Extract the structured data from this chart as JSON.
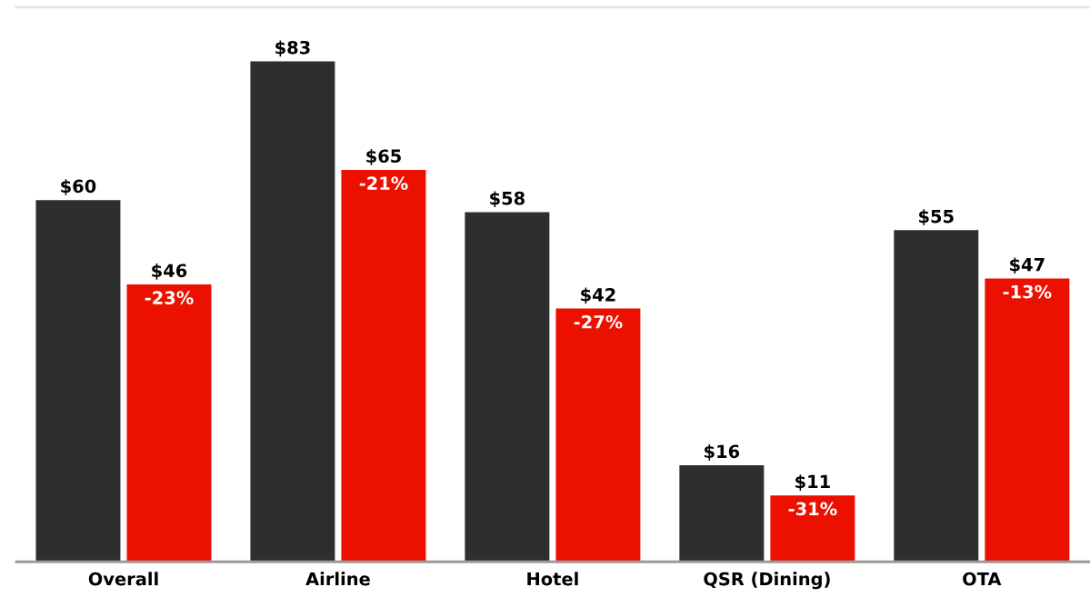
{
  "chart_data": {
    "type": "bar",
    "categories": [
      "Overall",
      "Airline",
      "Hotel",
      "QSR (Dining)",
      "OTA"
    ],
    "series": [
      {
        "color": "#2d2e2e",
        "values": [
          60,
          83,
          58,
          16,
          55
        ],
        "value_labels": [
          "$60",
          "$83",
          "$58",
          "$16",
          "$55"
        ]
      },
      {
        "color": "#eb1000",
        "values": [
          46,
          65,
          42,
          11,
          47
        ],
        "value_labels": [
          "$46",
          "$65",
          "$42",
          "$11",
          "$47"
        ]
      }
    ],
    "annotations": [
      {
        "text": "-23%",
        "x": "Overall",
        "y": 46
      },
      {
        "text": "-21%",
        "x": "Airline",
        "y": 65
      },
      {
        "text": "-27%",
        "x": "Hotel",
        "y": 42
      },
      {
        "text": "-31%",
        "x": "QSR (Dining)",
        "y": 11
      },
      {
        "text": "-13%",
        "x": "OTA",
        "y": 47
      }
    ],
    "ylim": [
      0,
      92
    ],
    "tick_labels": "x"
  }
}
